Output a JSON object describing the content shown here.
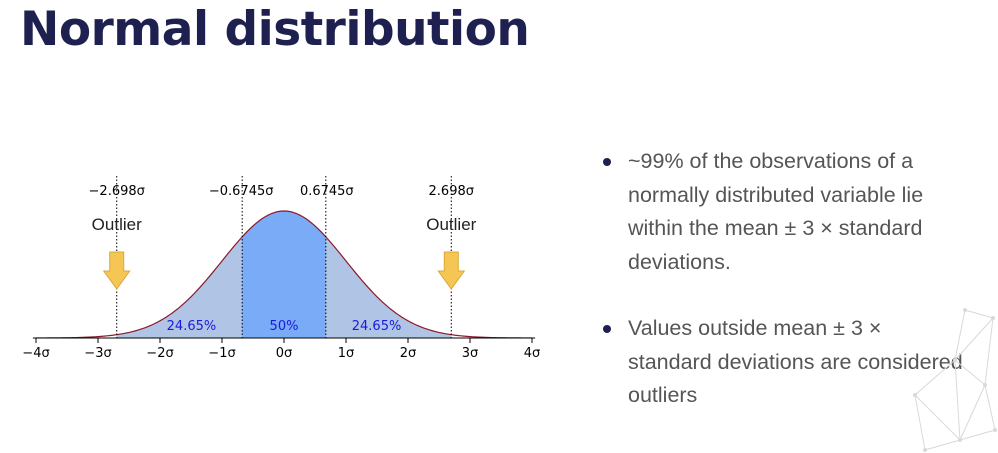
{
  "title": "Normal distribution",
  "diagram": {
    "ticks": [
      "−4σ",
      "−3σ",
      "−2σ",
      "−1σ",
      "0σ",
      "1σ",
      "2σ",
      "3σ",
      "4σ"
    ],
    "tick_values": [
      -4,
      -3,
      -2,
      -1,
      0,
      1,
      2,
      3,
      4
    ],
    "xlim": [
      -4,
      4
    ],
    "quartiles": [
      -0.6745,
      0.6745
    ],
    "fences": [
      -2.698,
      2.698
    ],
    "quartile_labels": [
      "−0.6745σ",
      "0.6745σ"
    ],
    "fence_labels": [
      "−2.698σ",
      "2.698σ"
    ],
    "outlier_label": "Outlier",
    "region_labels": [
      "24.65%",
      "50%",
      "24.65%"
    ],
    "colors": {
      "curve": "#8b1a2b",
      "outer_fill": "#b0c4e6",
      "inner_fill": "#7aabf7",
      "percent_text": "#1a1adc",
      "arrow": "#f5c654",
      "arrow_stroke": "#d9a93a"
    }
  },
  "bullets": [
    {
      "text": "~99% of the observations of a normally distributed variable lie within the mean ± 3 × standard deviations."
    },
    {
      "text": "Values outside mean ± 3 × standard deviations are considered outliers"
    }
  ]
}
